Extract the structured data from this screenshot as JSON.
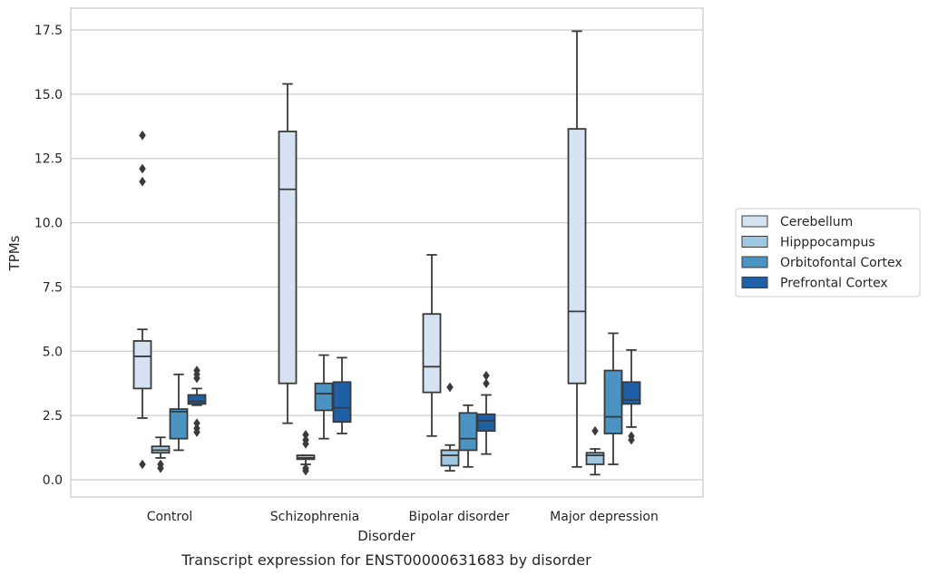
{
  "chart_data": {
    "type": "box",
    "title": "Transcript expression for ENST00000631683 by disorder",
    "xlabel": "Disorder",
    "ylabel": "TPMs",
    "ylim": [
      -0.6,
      18.4
    ],
    "yticks": [
      0.0,
      2.5,
      5.0,
      7.5,
      10.0,
      12.5,
      15.0,
      17.5
    ],
    "ytick_labels": [
      "0.0",
      "2.5",
      "5.0",
      "7.5",
      "10.0",
      "12.5",
      "15.0",
      "17.5"
    ],
    "grid": "horizontal",
    "legend_position": "right",
    "categories": [
      "Control",
      "Schizophrenia",
      "Bipolar disorder",
      "Major depression"
    ],
    "series": [
      {
        "name": "Cerebellum",
        "color": "#d4e2f2",
        "boxes": [
          {
            "whislo": 2.4,
            "q1": 3.55,
            "med": 4.8,
            "q3": 5.4,
            "whishi": 5.85,
            "fliers": [
              0.6,
              11.6,
              12.1,
              13.4
            ]
          },
          {
            "whislo": 2.2,
            "q1": 3.75,
            "med": 11.3,
            "q3": 13.55,
            "whishi": 15.4,
            "fliers": []
          },
          {
            "whislo": 1.7,
            "q1": 3.4,
            "med": 4.4,
            "q3": 6.45,
            "whishi": 8.75,
            "fliers": []
          },
          {
            "whislo": 0.5,
            "q1": 3.75,
            "med": 6.55,
            "q3": 13.65,
            "whishi": 17.45,
            "fliers": []
          }
        ]
      },
      {
        "name": "Hipppocampus",
        "color": "#9fc7e0",
        "boxes": [
          {
            "whislo": 0.85,
            "q1": 1.05,
            "med": 1.15,
            "q3": 1.3,
            "whishi": 1.65,
            "fliers": [
              0.45,
              0.6
            ]
          },
          {
            "whislo": 0.6,
            "q1": 0.8,
            "med": 0.85,
            "q3": 0.95,
            "whishi": 0.95,
            "fliers": [
              0.35,
              0.45,
              1.4,
              1.55,
              1.75
            ]
          },
          {
            "whislo": 0.35,
            "q1": 0.55,
            "med": 0.95,
            "q3": 1.15,
            "whishi": 1.35,
            "fliers": [
              3.6
            ]
          },
          {
            "whislo": 0.2,
            "q1": 0.6,
            "med": 0.95,
            "q3": 1.05,
            "whishi": 1.2,
            "fliers": [
              1.9
            ]
          }
        ]
      },
      {
        "name": "Orbitofontal Cortex",
        "color": "#4b93c3",
        "boxes": [
          {
            "whislo": 1.15,
            "q1": 1.6,
            "med": 2.65,
            "q3": 2.75,
            "whishi": 4.1,
            "fliers": []
          },
          {
            "whislo": 1.6,
            "q1": 2.7,
            "med": 3.35,
            "q3": 3.75,
            "whishi": 4.85,
            "fliers": []
          },
          {
            "whislo": 0.5,
            "q1": 1.15,
            "med": 1.6,
            "q3": 2.6,
            "whishi": 2.9,
            "fliers": []
          },
          {
            "whislo": 0.6,
            "q1": 1.8,
            "med": 2.45,
            "q3": 4.25,
            "whishi": 5.7,
            "fliers": []
          }
        ]
      },
      {
        "name": "Prefrontal Cortex",
        "color": "#1f5fa5",
        "boxes": [
          {
            "whislo": 2.9,
            "q1": 2.95,
            "med": 3.05,
            "q3": 3.3,
            "whishi": 3.55,
            "fliers": [
              1.85,
              2.0,
              2.2,
              3.95,
              4.1,
              4.25
            ]
          },
          {
            "whislo": 1.8,
            "q1": 2.25,
            "med": 2.8,
            "q3": 3.8,
            "whishi": 4.75,
            "fliers": []
          },
          {
            "whislo": 1.0,
            "q1": 1.9,
            "med": 2.3,
            "q3": 2.55,
            "whishi": 3.3,
            "fliers": [
              3.75,
              4.05
            ]
          },
          {
            "whislo": 2.05,
            "q1": 2.95,
            "med": 3.1,
            "q3": 3.8,
            "whishi": 5.05,
            "fliers": [
              1.55,
              1.7
            ]
          }
        ]
      }
    ]
  }
}
